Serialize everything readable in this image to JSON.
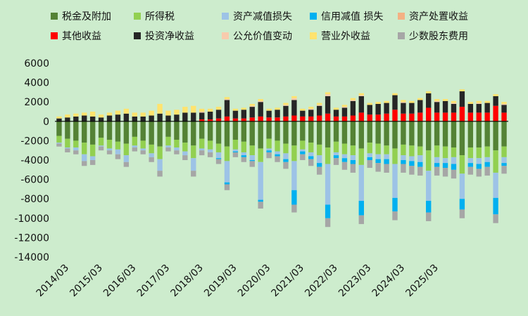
{
  "chart_data": {
    "type": "bar",
    "stacked": true,
    "ylim": [
      -14000,
      6000
    ],
    "yticks": [
      "6000",
      "4000",
      "2000",
      "0",
      "-2000",
      "-4000",
      "-6000",
      "-8000",
      "-10000",
      "-12000",
      "-14000"
    ],
    "xtick_labels": [
      "2014/03",
      "2015/03",
      "2016/03",
      "2017/03",
      "2018/03",
      "2019/03",
      "2020/03",
      "2021/03",
      "2022/03",
      "2023/03",
      "2024/03",
      "2025/03"
    ],
    "grid": false,
    "legend_position": "top",
    "series": [
      {
        "name": "税金及附加",
        "color": "#548235",
        "values": [
          -1500,
          -1800,
          -2000,
          -2200,
          -2400,
          -1700,
          -1900,
          -2100,
          -2300,
          -1600,
          -2000,
          -2400,
          -2600,
          -1600,
          -1900,
          -2200,
          -2500,
          -1800,
          -2000,
          -2300,
          -2600,
          -1900,
          -2100,
          -2500,
          -2800,
          -1800,
          -2000,
          -2300,
          -2500,
          -2000,
          -2200,
          -2400,
          -2700,
          -2100,
          -2300,
          -2500,
          -2800,
          -2200,
          -2300,
          -2500,
          -2800,
          -2400,
          -2500,
          -2600,
          -3000,
          -2500,
          -2600,
          -2700,
          -3500,
          -2700,
          -2700,
          -2600,
          -3000,
          -2600
        ]
      },
      {
        "name": "所得税",
        "color": "#92d050",
        "values": [
          -700,
          -900,
          -700,
          -1200,
          -1200,
          -800,
          -900,
          -800,
          -1200,
          -900,
          -800,
          -900,
          -1300,
          -900,
          -800,
          -900,
          -1300,
          -1000,
          -900,
          -900,
          -1500,
          -1000,
          -1100,
          -1000,
          -1400,
          -1000,
          -1100,
          -1000,
          -1600,
          -900,
          -1000,
          -1100,
          -1700,
          -1100,
          -1100,
          -1000,
          -1700,
          -1100,
          -1100,
          -900,
          -1600,
          -1100,
          -1100,
          -900,
          -2100,
          -1200,
          -1200,
          -1000,
          -1900,
          -1100,
          -1100,
          -1100,
          -2300,
          -1100
        ]
      },
      {
        "name": "资产减值损失",
        "color": "#9dc3e6",
        "values": [
          -100,
          -100,
          -300,
          -700,
          -400,
          -100,
          -200,
          -500,
          -700,
          -200,
          -200,
          -400,
          -1200,
          -200,
          -300,
          -400,
          -1300,
          -200,
          -300,
          -600,
          -2200,
          -200,
          -300,
          -500,
          -3900,
          -200,
          -300,
          -600,
          -3000,
          -200,
          -400,
          -800,
          -4200,
          -300,
          -400,
          -500,
          -3700,
          -400,
          -500,
          -500,
          -3500,
          -500,
          -500,
          -700,
          -3100,
          -600,
          -500,
          -700,
          -2600,
          -500,
          -600,
          -500,
          -2600,
          -600
        ]
      },
      {
        "name": "信用减值  损失",
        "color": "#00b0f0",
        "values": [
          0,
          0,
          0,
          0,
          0,
          0,
          0,
          0,
          0,
          0,
          0,
          0,
          0,
          0,
          0,
          0,
          0,
          0,
          0,
          -100,
          -200,
          -100,
          -200,
          -100,
          -200,
          -200,
          -200,
          -300,
          -1500,
          -300,
          -300,
          -400,
          -1400,
          -300,
          -400,
          -400,
          -1500,
          -300,
          -400,
          -500,
          -1400,
          -400,
          -500,
          -500,
          -1200,
          -400,
          -500,
          -600,
          -1100,
          -400,
          -500,
          -500,
          -1700,
          -300
        ]
      },
      {
        "name": "资产处置收益",
        "color": "#f4b183",
        "values": [
          0,
          0,
          0,
          0,
          0,
          0,
          0,
          0,
          0,
          0,
          0,
          0,
          0,
          0,
          0,
          0,
          0,
          0,
          0,
          0,
          0,
          0,
          0,
          0,
          0,
          0,
          0,
          0,
          0,
          0,
          0,
          0,
          0,
          0,
          0,
          0,
          0,
          0,
          0,
          0,
          0,
          0,
          0,
          0,
          0,
          0,
          0,
          0,
          0,
          0,
          0,
          0,
          0,
          0
        ]
      },
      {
        "name": "其他收益",
        "color": "#ff0000",
        "values": [
          0,
          0,
          0,
          0,
          0,
          0,
          0,
          0,
          0,
          0,
          0,
          0,
          0,
          0,
          0,
          0,
          0,
          200,
          200,
          300,
          500,
          300,
          300,
          400,
          500,
          400,
          400,
          500,
          600,
          500,
          500,
          600,
          800,
          500,
          500,
          600,
          900,
          700,
          700,
          800,
          1200,
          800,
          800,
          900,
          1400,
          900,
          900,
          900,
          1500,
          900,
          900,
          900,
          1600,
          900
        ]
      },
      {
        "name": "投资净收益",
        "color": "#262626",
        "values": [
          300,
          400,
          500,
          600,
          500,
          400,
          600,
          700,
          800,
          500,
          500,
          600,
          800,
          600,
          700,
          900,
          900,
          700,
          800,
          900,
          1700,
          800,
          900,
          1100,
          1500,
          700,
          800,
          1100,
          1600,
          600,
          700,
          1000,
          1800,
          700,
          900,
          1500,
          1700,
          1000,
          1100,
          1100,
          1500,
          1100,
          1100,
          1300,
          1500,
          1100,
          1200,
          900,
          1600,
          900,
          900,
          1000,
          1000,
          800
        ]
      },
      {
        "name": "公允价值变动",
        "color": "#f8cbad",
        "values": [
          0,
          0,
          0,
          0,
          0,
          0,
          0,
          0,
          0,
          0,
          0,
          0,
          0,
          0,
          0,
          0,
          0,
          100,
          0,
          0,
          100,
          0,
          0,
          100,
          100,
          0,
          0,
          100,
          200,
          0,
          100,
          100,
          200,
          0,
          100,
          100,
          100,
          0,
          0,
          0,
          0,
          100,
          0,
          0,
          0,
          100,
          0,
          100,
          0,
          0,
          100,
          0,
          0,
          100
        ]
      },
      {
        "name": "营业外收益",
        "color": "#ffe36e",
        "values": [
          200,
          300,
          300,
          300,
          500,
          300,
          300,
          400,
          500,
          400,
          400,
          500,
          1000,
          500,
          500,
          600,
          700,
          300,
          300,
          300,
          200,
          200,
          200,
          200,
          200,
          200,
          200,
          200,
          200,
          200,
          200,
          200,
          200,
          200,
          200,
          200,
          200,
          200,
          200,
          200,
          200,
          200,
          200,
          200,
          200,
          200,
          200,
          200,
          200,
          200,
          200,
          200,
          200,
          200
        ]
      },
      {
        "name": "少数股东费用",
        "color": "#a6a6a6",
        "values": [
          -300,
          -400,
          -400,
          -500,
          -500,
          -400,
          -400,
          -500,
          -500,
          -400,
          -400,
          -500,
          -600,
          -400,
          -400,
          -500,
          -600,
          -500,
          -500,
          -500,
          -600,
          -500,
          -500,
          -600,
          -700,
          -600,
          -600,
          -700,
          -800,
          -600,
          -700,
          -800,
          -900,
          -700,
          -800,
          -900,
          -900,
          -800,
          -900,
          -900,
          -900,
          -900,
          -900,
          -900,
          -900,
          -900,
          -900,
          -900,
          -900,
          -800,
          -800,
          -900,
          -900,
          -800
        ]
      }
    ]
  }
}
